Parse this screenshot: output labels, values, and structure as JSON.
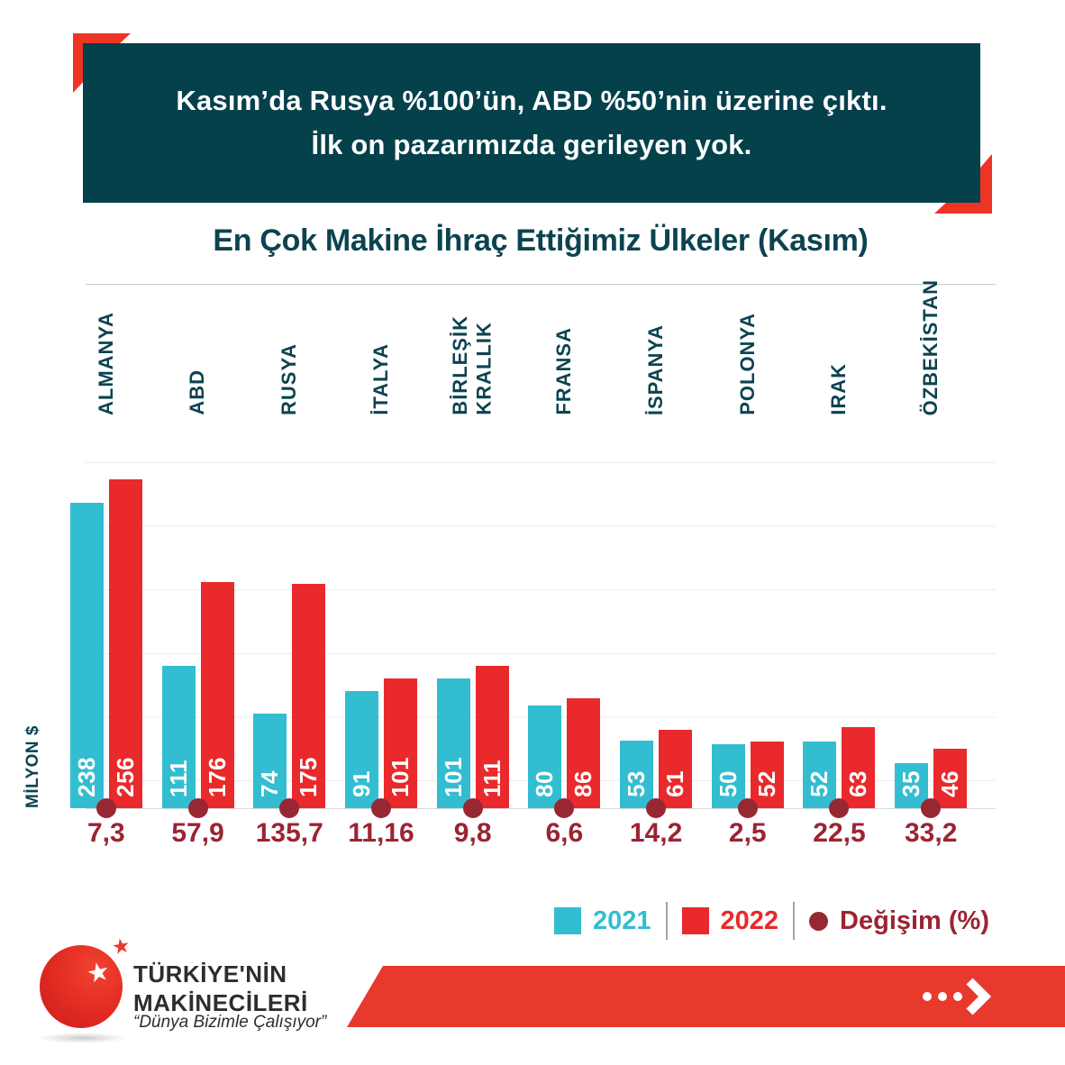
{
  "header": {
    "line1": "Kasım’da Rusya %100’ün, ABD %50’nin üzerine çıktı.",
    "line2": "İlk on pazarımızda gerileyen yok."
  },
  "chart_data": {
    "type": "bar",
    "title": "En Çok Makine İhraç Ettiğimiz Ülkeler (Kasım)",
    "unit_label": "MİLYON $",
    "categories": [
      "ALMANYA",
      "ABD",
      "RUSYA",
      "İTALYA",
      "BİRLEŞİK\nKRALLIK",
      "FRANSA",
      "İSPANYA",
      "POLONYA",
      "IRAK",
      "ÖZBEKİSTAN"
    ],
    "series": [
      {
        "name": "2021",
        "color": "#33bdd1",
        "values": [
          238,
          111,
          74,
          91,
          101,
          80,
          53,
          50,
          52,
          35
        ]
      },
      {
        "name": "2022",
        "color": "#e9292c",
        "values": [
          256,
          176,
          175,
          101,
          111,
          86,
          61,
          52,
          63,
          46
        ]
      }
    ],
    "change_series": {
      "name": "Değişim (%)",
      "color": "#9b2433",
      "values": [
        "7,3",
        "57,9",
        "135,7",
        "11,16",
        "9,8",
        "6,6",
        "14,2",
        "2,5",
        "22,5",
        "33,2"
      ]
    },
    "ylim": [
      0,
      270
    ],
    "grid": true,
    "legend_position": "bottom-right"
  },
  "legend": {
    "items": [
      {
        "label": "2021",
        "shape": "square",
        "color": "#33bdd1"
      },
      {
        "label": "2022",
        "shape": "square",
        "color": "#e9292c"
      },
      {
        "label": "Değişim (%)",
        "shape": "circle",
        "color": "#9b2433"
      }
    ]
  },
  "footer": {
    "brand_line1": "TÜRKİYE'NİN",
    "brand_line2": "MAKİNECİLERİ",
    "tagline": "“Dünya Bizimle Çalışıyor”"
  },
  "icons": {
    "banner_arrow": "dots-chevron-right-icon",
    "logo_star_big": "white-star-icon",
    "logo_star_small": "red-star-icon"
  },
  "colors": {
    "dark_teal": "#04414b",
    "teal_text": "#0c4350",
    "bar_2021": "#33bdd1",
    "bar_2022": "#e9292c",
    "maroon": "#9b2433",
    "accent_red": "#ee3425",
    "banner_red": "#e8392d"
  }
}
